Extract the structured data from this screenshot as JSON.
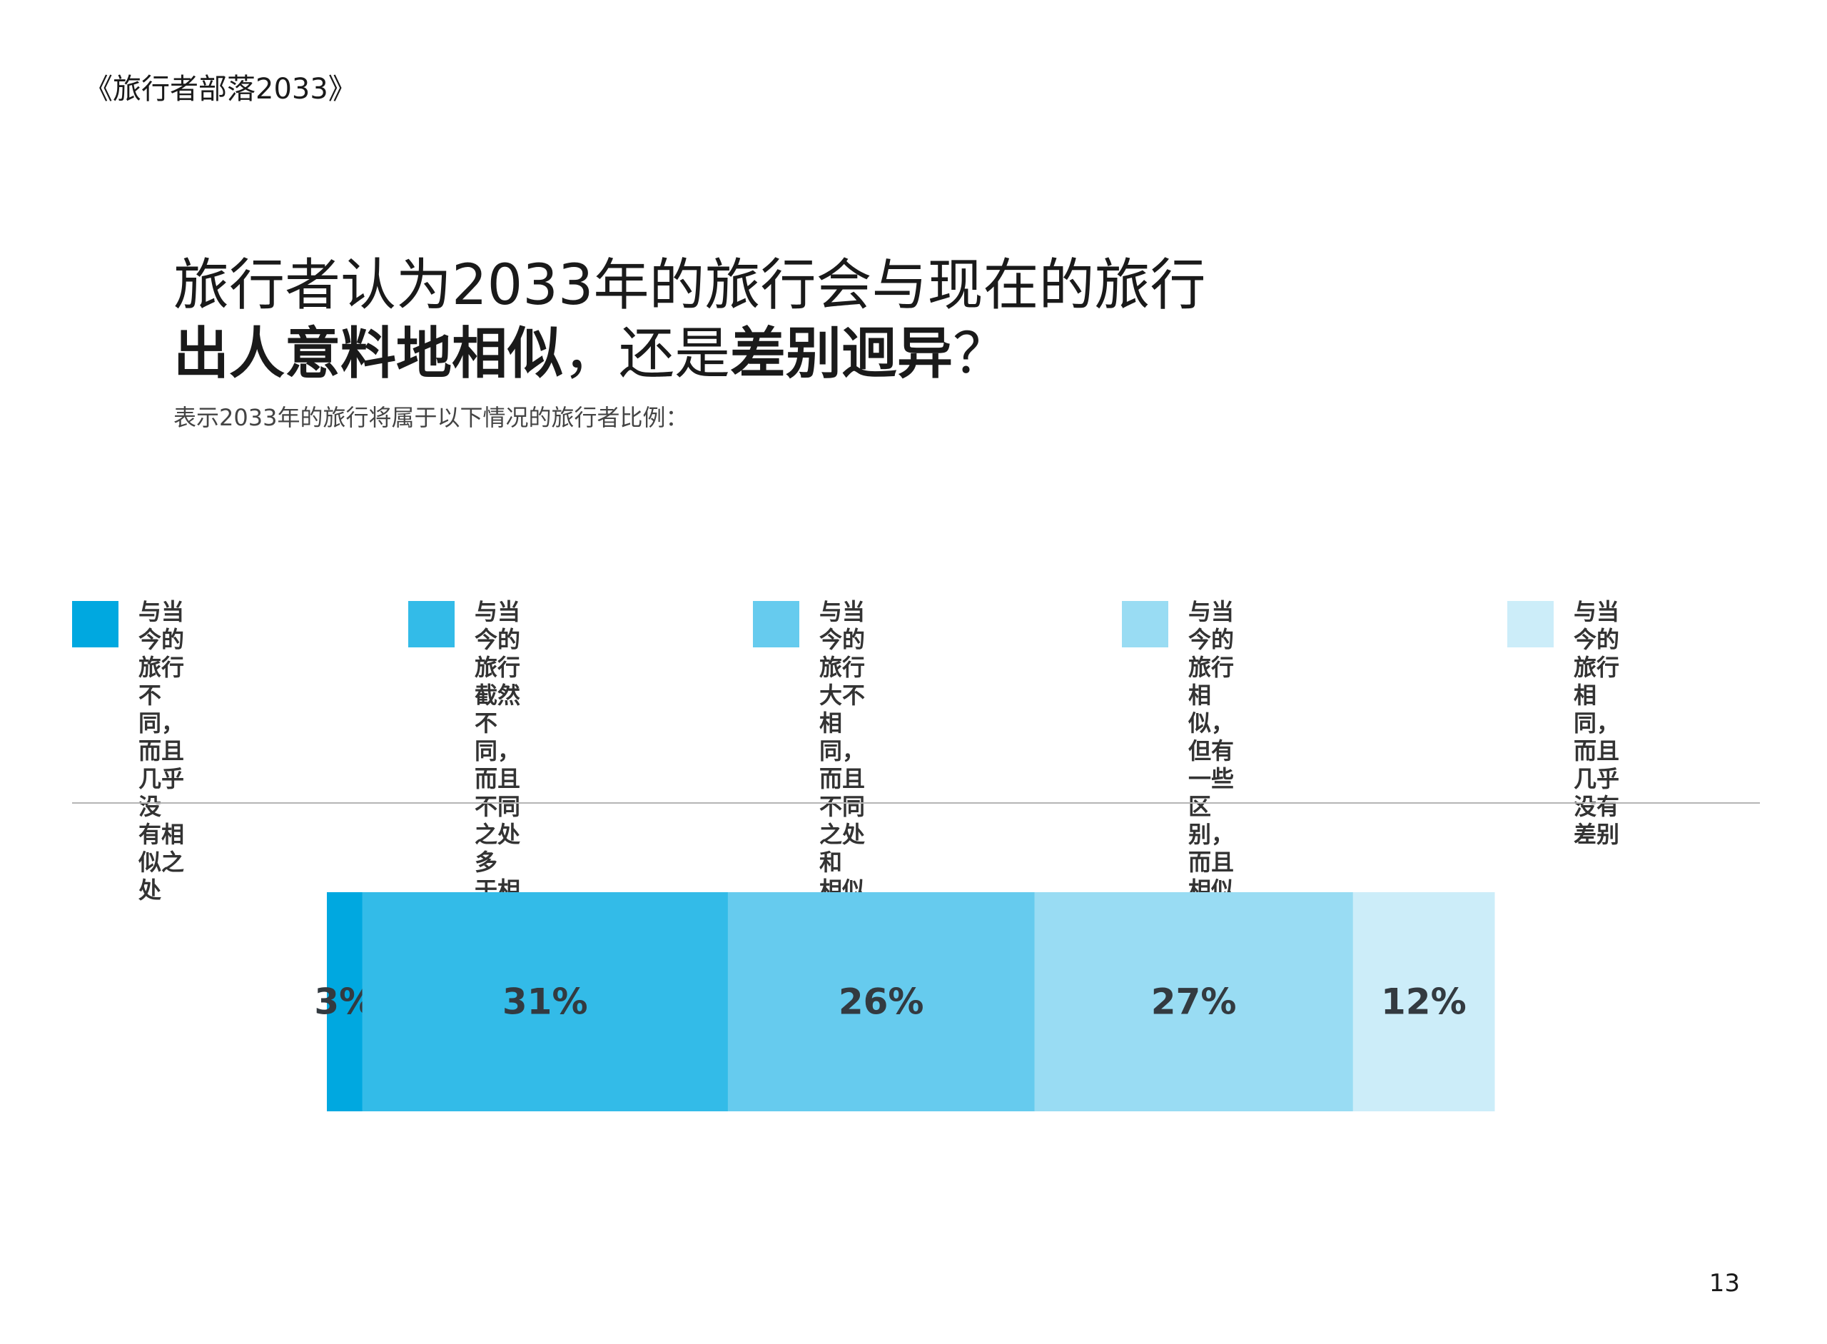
{
  "header": {
    "doc_title": "《旅行者部落2033》"
  },
  "headline": {
    "line1": "旅行者认为2033年的旅行会与现在的旅行",
    "line2_bold1": "出人意料地相似",
    "line2_mid": "，还是",
    "line2_bold2": "差别迥异",
    "line2_end": "？"
  },
  "subtitle": "表示2033年的旅行将属于以下情况的旅行者比例：",
  "legend": [
    {
      "label": "与当今的旅行不\n同，而且几乎没\n有相似之处",
      "color": "#00a8e0"
    },
    {
      "label": "与当今的旅行截然不\n同，而且不同之处多\n于相似之处",
      "color": "#33bbe8"
    },
    {
      "label": "与当今的旅行大不相\n同，而且不同之处和\n相似之处各占一半",
      "color": "#66cbee"
    },
    {
      "label": "与当今的旅行相似，但有\n一些区别，而且相似之处\n多于不同之处",
      "color": "#99dcf3"
    },
    {
      "label": "与当今的旅行相同，\n而且几乎没有差别",
      "color": "#ccedf9"
    }
  ],
  "chart_data": {
    "type": "bar",
    "orientation": "horizontal-stacked-100",
    "title": "表示2033年的旅行将属于以下情况的旅行者比例：",
    "categories": [
      "与当今的旅行不同，而且几乎没有相似之处",
      "与当今的旅行截然不同，而且不同之处多于相似之处",
      "与当今的旅行大不相同，而且不同之处和相似之处各占一半",
      "与当今的旅行相似，但有一些区别，而且相似之处多于不同之处",
      "与当今的旅行相同，而且几乎没有差别"
    ],
    "values": [
      3,
      31,
      26,
      27,
      12
    ],
    "labels": [
      "3%",
      "31%",
      "26%",
      "27%",
      "12%"
    ],
    "colors": [
      "#00a8e0",
      "#33bbe8",
      "#66cbee",
      "#99dcf3",
      "#ccedf9"
    ],
    "unit": "%",
    "legend": "top"
  },
  "footer": {
    "page_number": "13"
  }
}
